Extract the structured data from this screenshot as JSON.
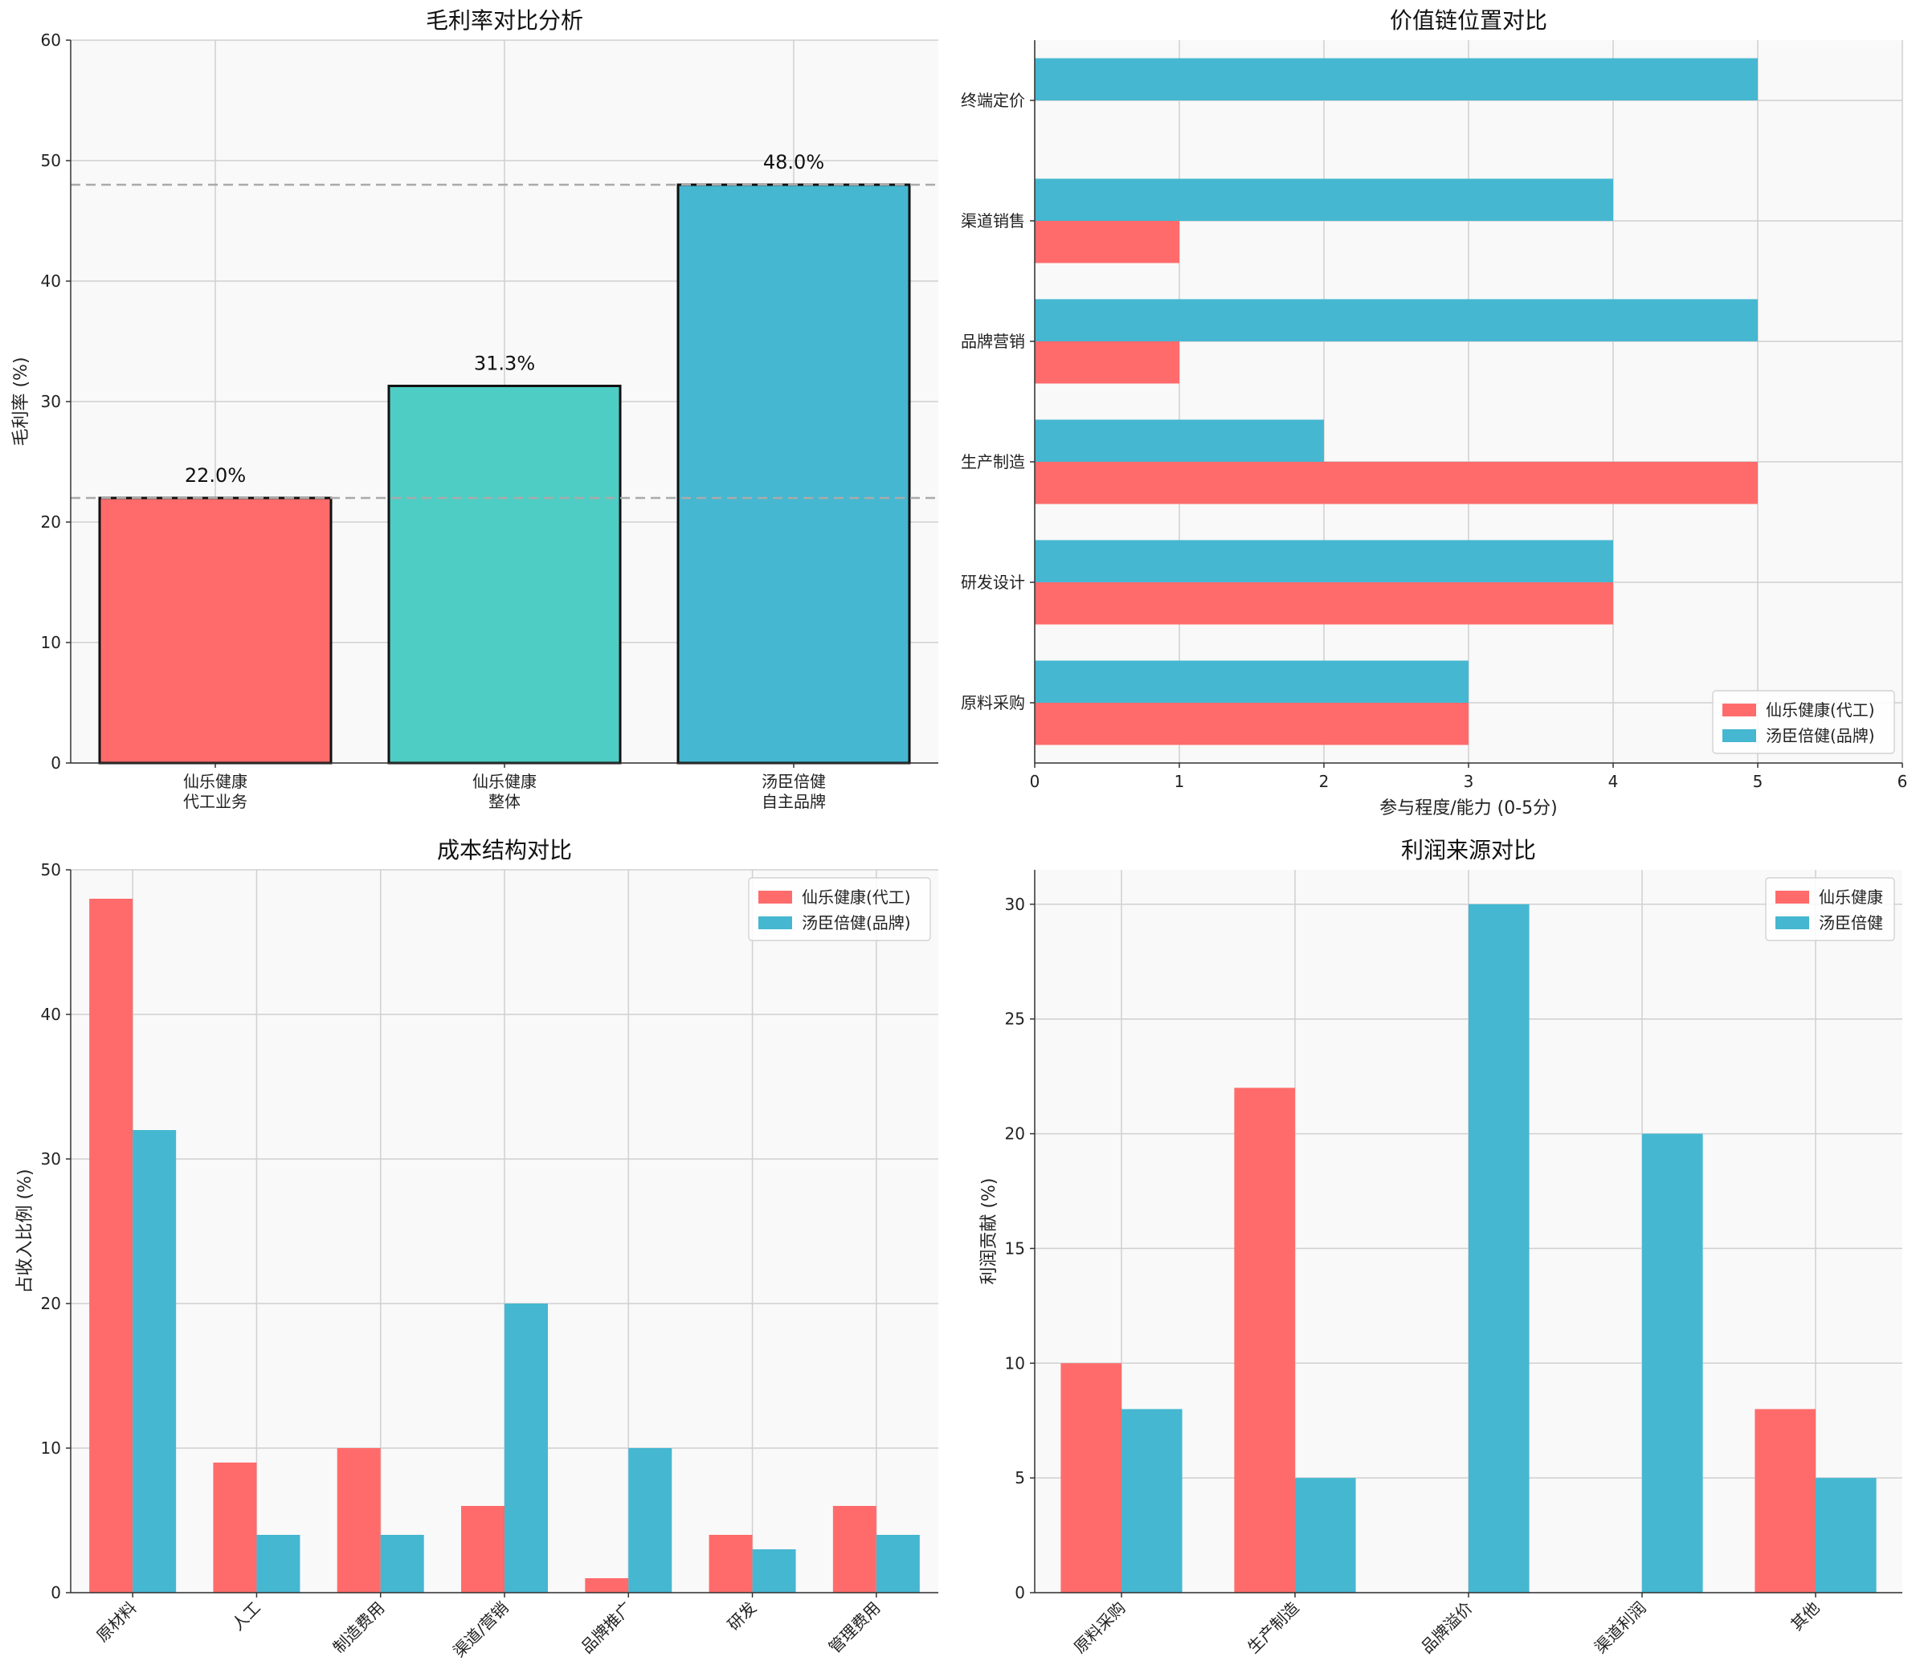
{
  "colors": {
    "red": "#ff6b6b",
    "teal": "#4ecdc4",
    "blue": "#45b7d1",
    "plot_bg": "#f9f9f9",
    "grid": "#d0d0d0",
    "ref_line": "#aaaaaa"
  },
  "chart_data": [
    {
      "type": "bar",
      "title": "毛利率对比分析",
      "xlabel": "",
      "ylabel": "毛利率 (%)",
      "categories": [
        "仙乐健康\n代工业务",
        "仙乐健康\n整体",
        "汤臣倍健\n自主品牌"
      ],
      "values": [
        22.0,
        31.3,
        48.0
      ],
      "value_labels": [
        "22.0%",
        "31.3%",
        "48.0%"
      ],
      "bar_colors": [
        "red",
        "teal",
        "blue"
      ],
      "reference_lines": [
        22.0,
        48.0
      ],
      "ylim": [
        0,
        60
      ],
      "yticks": [
        "0",
        "10",
        "20",
        "30",
        "40",
        "50",
        "60"
      ],
      "grid": true
    },
    {
      "type": "bar",
      "orientation": "horizontal",
      "title": "价值链位置对比",
      "xlabel": "参与程度/能力 (0-5分)",
      "ylabel": "",
      "categories": [
        "原料采购",
        "研发设计",
        "生产制造",
        "品牌营销",
        "渠道销售",
        "终端定价"
      ],
      "series": [
        {
          "name": "仙乐健康(代工)",
          "color": "red",
          "values": [
            3,
            4,
            5,
            1,
            1,
            0
          ]
        },
        {
          "name": "汤臣倍健(品牌)",
          "color": "blue",
          "values": [
            3,
            4,
            2,
            5,
            4,
            5
          ]
        }
      ],
      "xlim": [
        0,
        6
      ],
      "xticks": [
        "0",
        "1",
        "2",
        "3",
        "4",
        "5",
        "6"
      ],
      "legend": "bottom-right",
      "grid": true
    },
    {
      "type": "bar",
      "title": "成本结构对比",
      "xlabel": "",
      "ylabel": "占收入比例 (%)",
      "categories": [
        "原材料",
        "人工",
        "制造费用",
        "渠道/营销",
        "品牌推广",
        "研发",
        "管理费用"
      ],
      "series": [
        {
          "name": "仙乐健康(代工)",
          "color": "red",
          "values": [
            48,
            9,
            10,
            6,
            1,
            4,
            6
          ]
        },
        {
          "name": "汤臣倍健(品牌)",
          "color": "blue",
          "values": [
            32,
            4,
            4,
            20,
            10,
            3,
            4
          ]
        }
      ],
      "ylim": [
        0,
        50
      ],
      "yticks": [
        "0",
        "10",
        "20",
        "30",
        "40",
        "50"
      ],
      "legend": "top-right",
      "grid": true
    },
    {
      "type": "bar",
      "title": "利润来源对比",
      "xlabel": "",
      "ylabel": "利润贡献 (%)",
      "categories": [
        "原料采购",
        "生产制造",
        "品牌溢价",
        "渠道利润",
        "其他"
      ],
      "series": [
        {
          "name": "仙乐健康",
          "color": "red",
          "values": [
            10,
            22,
            0,
            0,
            8
          ]
        },
        {
          "name": "汤臣倍健",
          "color": "blue",
          "values": [
            8,
            5,
            30,
            20,
            5
          ]
        }
      ],
      "ylim": [
        0,
        31.5
      ],
      "yticks": [
        "0",
        "5",
        "10",
        "15",
        "20",
        "25",
        "30"
      ],
      "legend": "top-right",
      "grid": true
    }
  ]
}
